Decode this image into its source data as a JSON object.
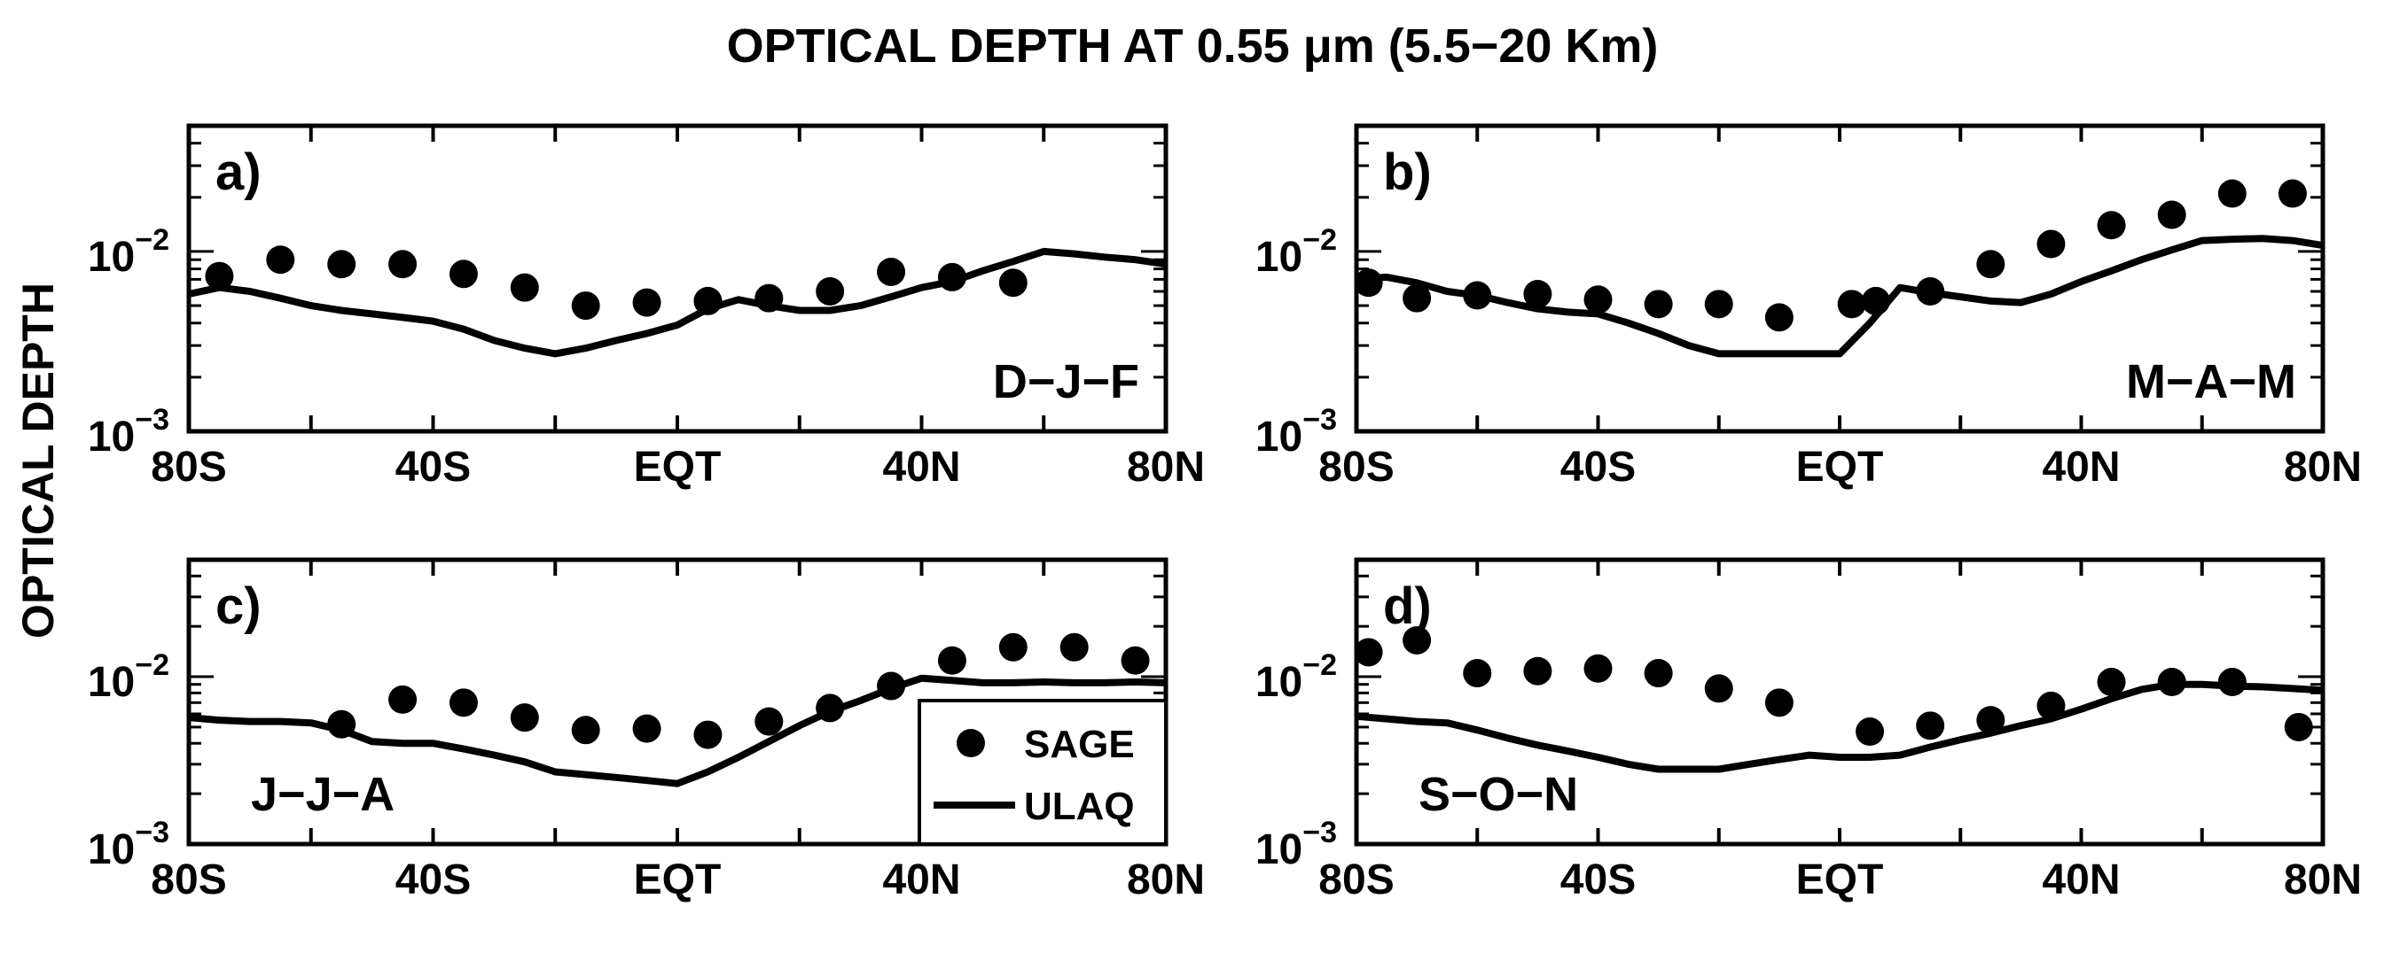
{
  "figure": {
    "title": "OPTICAL DEPTH AT 0.55 μm (5.5−20 Km)",
    "ylabel": "OPTICAL DEPTH",
    "colors": {
      "sage_marker": "#000000",
      "ulaq_line": "#000000"
    }
  },
  "chart_data": [
    {
      "type": "line",
      "panel_label": "a)",
      "season": "D−J−F",
      "x_ticklabels": [
        "80S",
        "40S",
        "EQT",
        "40N",
        "80N"
      ],
      "x_ticks": [
        -80,
        -40,
        0,
        40,
        80
      ],
      "xlim": [
        -80,
        80
      ],
      "y_ticklabels": [
        {
          "base": "10",
          "exp": "−3"
        },
        {
          "base": "10",
          "exp": "−2"
        }
      ],
      "y_ticks": [
        0.001,
        0.01
      ],
      "ylim": [
        0.001,
        0.05
      ],
      "yscale": "log",
      "series": [
        {
          "name": "SAGE",
          "style": "markers",
          "x": [
            -75,
            -65,
            -55,
            -45,
            -35,
            -25,
            -15,
            -5,
            5,
            15,
            25,
            35,
            45,
            55
          ],
          "values": [
            0.0073,
            0.009,
            0.0085,
            0.0085,
            0.0075,
            0.0063,
            0.005,
            0.0052,
            0.0053,
            0.0055,
            0.006,
            0.0077,
            0.0072,
            0.0067
          ]
        },
        {
          "name": "ULAQ",
          "style": "line",
          "x": [
            -80,
            -75,
            -70,
            -65,
            -60,
            -55,
            -50,
            -45,
            -40,
            -35,
            -30,
            -25,
            -20,
            -15,
            -10,
            -5,
            0,
            5,
            10,
            15,
            20,
            25,
            30,
            35,
            40,
            45,
            50,
            55,
            60,
            65,
            70,
            75,
            80
          ],
          "values": [
            0.0058,
            0.0063,
            0.006,
            0.0055,
            0.005,
            0.0047,
            0.0045,
            0.0043,
            0.0041,
            0.0037,
            0.0032,
            0.0029,
            0.0027,
            0.0029,
            0.0032,
            0.0035,
            0.0039,
            0.0048,
            0.0054,
            0.005,
            0.0047,
            0.0047,
            0.005,
            0.0056,
            0.0063,
            0.0068,
            0.0078,
            0.0088,
            0.01,
            0.0097,
            0.0093,
            0.009,
            0.0085
          ]
        }
      ]
    },
    {
      "type": "line",
      "panel_label": "b)",
      "season": "M−A−M",
      "x_ticklabels": [
        "80S",
        "40S",
        "EQT",
        "40N",
        "80N"
      ],
      "x_ticks": [
        -80,
        -40,
        0,
        40,
        80
      ],
      "xlim": [
        -80,
        80
      ],
      "y_ticklabels": [
        {
          "base": "10",
          "exp": "−3"
        },
        {
          "base": "10",
          "exp": "−2"
        }
      ],
      "y_ticks": [
        0.001,
        0.01
      ],
      "ylim": [
        0.001,
        0.05
      ],
      "yscale": "log",
      "series": [
        {
          "name": "SAGE",
          "style": "markers",
          "x": [
            -78,
            -70,
            -60,
            -50,
            -40,
            -30,
            -20,
            -10,
            2,
            6,
            15,
            25,
            35,
            45,
            55,
            65,
            75
          ],
          "values": [
            0.0067,
            0.0055,
            0.0057,
            0.0058,
            0.0054,
            0.0051,
            0.0051,
            0.0043,
            0.0051,
            0.0053,
            0.006,
            0.0085,
            0.011,
            0.014,
            0.016,
            0.021,
            0.021
          ]
        },
        {
          "name": "ULAQ",
          "style": "line",
          "x": [
            -80,
            -75,
            -70,
            -65,
            -60,
            -55,
            -50,
            -45,
            -40,
            -35,
            -30,
            -25,
            -20,
            -15,
            -10,
            -5,
            0,
            5,
            10,
            15,
            20,
            25,
            30,
            35,
            40,
            45,
            50,
            55,
            60,
            65,
            70,
            75,
            80
          ],
          "values": [
            0.007,
            0.0072,
            0.0067,
            0.006,
            0.0057,
            0.0052,
            0.0048,
            0.0046,
            0.0045,
            0.004,
            0.0035,
            0.003,
            0.0027,
            0.0027,
            0.0027,
            0.0027,
            0.0027,
            0.004,
            0.0063,
            0.0059,
            0.0056,
            0.0053,
            0.0052,
            0.0058,
            0.0068,
            0.0078,
            0.009,
            0.0102,
            0.0115,
            0.0117,
            0.0118,
            0.0115,
            0.0108
          ]
        }
      ]
    },
    {
      "type": "line",
      "panel_label": "c)",
      "season": "J−J−A",
      "x_ticklabels": [
        "80S",
        "40S",
        "EQT",
        "40N",
        "80N"
      ],
      "x_ticks": [
        -80,
        -40,
        0,
        40,
        80
      ],
      "xlim": [
        -80,
        80
      ],
      "y_ticklabels": [
        {
          "base": "10",
          "exp": "−3"
        },
        {
          "base": "10",
          "exp": "−2"
        }
      ],
      "y_ticks": [
        0.001,
        0.01
      ],
      "ylim": [
        0.001,
        0.05
      ],
      "yscale": "log",
      "series": [
        {
          "name": "SAGE",
          "style": "markers",
          "x": [
            -55,
            -45,
            -35,
            -25,
            -15,
            -5,
            5,
            15,
            25,
            35,
            45,
            55,
            65,
            75
          ],
          "values": [
            0.0052,
            0.0073,
            0.007,
            0.0057,
            0.0048,
            0.0049,
            0.0045,
            0.0054,
            0.0065,
            0.0088,
            0.0125,
            0.015,
            0.015,
            0.0125
          ]
        },
        {
          "name": "ULAQ",
          "style": "line",
          "x": [
            -80,
            -75,
            -70,
            -65,
            -60,
            -55,
            -50,
            -45,
            -40,
            -35,
            -30,
            -25,
            -20,
            -15,
            -10,
            -5,
            0,
            5,
            10,
            15,
            20,
            25,
            30,
            35,
            40,
            45,
            50,
            55,
            60,
            65,
            70,
            75,
            80
          ],
          "values": [
            0.0057,
            0.0055,
            0.0054,
            0.0054,
            0.0053,
            0.0048,
            0.0041,
            0.004,
            0.004,
            0.0037,
            0.0034,
            0.0031,
            0.0027,
            0.0026,
            0.0025,
            0.0024,
            0.0023,
            0.0027,
            0.0033,
            0.0041,
            0.0051,
            0.0062,
            0.0072,
            0.0085,
            0.0098,
            0.0095,
            0.0092,
            0.0092,
            0.0093,
            0.0092,
            0.0092,
            0.0093,
            0.0092
          ]
        }
      ]
    },
    {
      "type": "line",
      "panel_label": "d)",
      "season": "S−O−N",
      "x_ticklabels": [
        "80S",
        "40S",
        "EQT",
        "40N",
        "80N"
      ],
      "x_ticks": [
        -80,
        -40,
        0,
        40,
        80
      ],
      "xlim": [
        -80,
        80
      ],
      "y_ticklabels": [
        {
          "base": "10",
          "exp": "−3"
        },
        {
          "base": "10",
          "exp": "−2"
        }
      ],
      "y_ticks": [
        0.001,
        0.01
      ],
      "ylim": [
        0.001,
        0.05
      ],
      "yscale": "log",
      "series": [
        {
          "name": "SAGE",
          "style": "markers",
          "x": [
            -78,
            -70,
            -60,
            -50,
            -40,
            -30,
            -20,
            -10,
            5,
            15,
            25,
            35,
            45,
            55,
            65,
            76
          ],
          "values": [
            0.014,
            0.0165,
            0.0105,
            0.0108,
            0.0112,
            0.0105,
            0.0085,
            0.007,
            0.0047,
            0.0051,
            0.0055,
            0.0067,
            0.0093,
            0.0093,
            0.0093,
            0.005
          ]
        },
        {
          "name": "ULAQ",
          "style": "line",
          "x": [
            -80,
            -75,
            -70,
            -65,
            -60,
            -55,
            -50,
            -45,
            -40,
            -35,
            -30,
            -25,
            -20,
            -15,
            -10,
            -5,
            0,
            5,
            10,
            15,
            20,
            25,
            30,
            35,
            40,
            45,
            50,
            55,
            60,
            65,
            70,
            75,
            80
          ],
          "values": [
            0.0058,
            0.0056,
            0.0054,
            0.0053,
            0.0048,
            0.0043,
            0.0039,
            0.0036,
            0.0033,
            0.003,
            0.0028,
            0.0028,
            0.0028,
            0.003,
            0.0032,
            0.0034,
            0.0033,
            0.0033,
            0.0034,
            0.0038,
            0.0042,
            0.0046,
            0.0051,
            0.0056,
            0.0064,
            0.0074,
            0.0084,
            0.009,
            0.009,
            0.0088,
            0.0087,
            0.0085,
            0.0083
          ]
        }
      ]
    }
  ],
  "legend": {
    "entries": [
      {
        "label": "SAGE",
        "style": "markers"
      },
      {
        "label": "ULAQ",
        "style": "line"
      }
    ],
    "panel": "c)",
    "placement": "bottom-right"
  }
}
